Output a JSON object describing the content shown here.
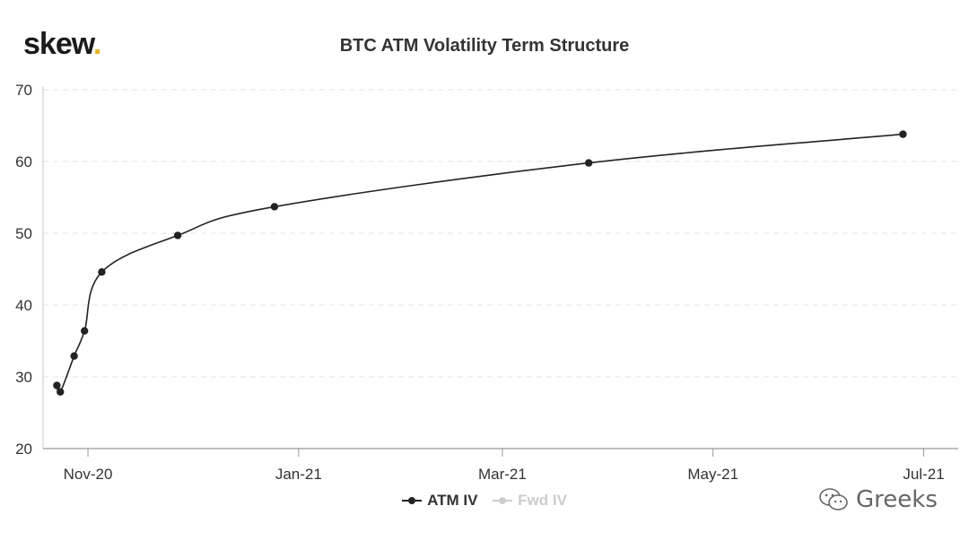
{
  "header": {
    "logo_text": "skew",
    "logo_dot": ".",
    "title": "BTC ATM Volatility Term Structure"
  },
  "watermark": {
    "text": "Greeks",
    "icon": "wechat-icon"
  },
  "colors": {
    "atm_series": "#222222",
    "fwd_series": "#cccccc",
    "logo_dot": "#e0b320",
    "grid": "#e3e3e3",
    "axis": "#c8c8c8"
  },
  "chart_data": {
    "type": "line",
    "title": "BTC ATM Volatility Term Structure",
    "xlabel": "",
    "ylabel": "",
    "ylim": [
      20,
      70
    ],
    "yticks": [
      20,
      30,
      40,
      50,
      60,
      70
    ],
    "xlim": [
      "2020-10-19",
      "2021-07-11"
    ],
    "xticks": [
      {
        "date": "2020-11-01",
        "label": "Nov-20"
      },
      {
        "date": "2021-01-01",
        "label": "Jan-21"
      },
      {
        "date": "2021-03-01",
        "label": "Mar-21"
      },
      {
        "date": "2021-05-01",
        "label": "May-21"
      },
      {
        "date": "2021-07-01",
        "label": "Jul-21"
      }
    ],
    "grid": true,
    "legend_position": "bottom-center",
    "series": [
      {
        "name": "ATM IV",
        "visible": true,
        "points": [
          {
            "x": "2020-10-23",
            "y": 28.8
          },
          {
            "x": "2020-10-24",
            "y": 27.9
          },
          {
            "x": "2020-10-28",
            "y": 32.9
          },
          {
            "x": "2020-10-31",
            "y": 36.4
          },
          {
            "x": "2020-11-05",
            "y": 44.6
          },
          {
            "x": "2020-11-27",
            "y": 49.7
          },
          {
            "x": "2020-12-25",
            "y": 53.7
          },
          {
            "x": "2021-03-26",
            "y": 59.8
          },
          {
            "x": "2021-06-25",
            "y": 63.8
          }
        ]
      },
      {
        "name": "Fwd IV",
        "visible": false,
        "points": []
      }
    ]
  }
}
